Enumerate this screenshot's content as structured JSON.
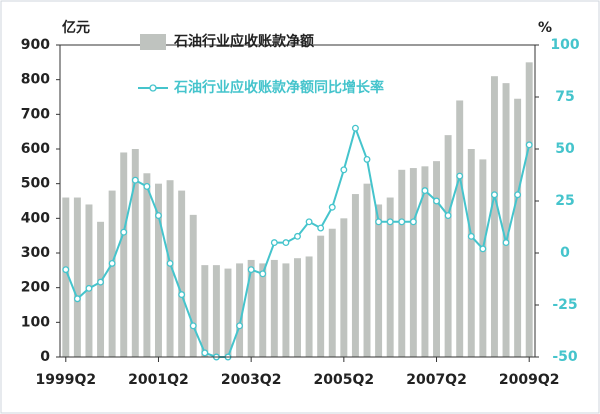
{
  "chart_data": {
    "type": "bar-line",
    "y_label": "亿元",
    "y2_label": "%",
    "categories": [
      "1999Q2",
      null,
      null,
      null,
      null,
      null,
      null,
      null,
      "2001Q2",
      null,
      null,
      null,
      null,
      null,
      null,
      null,
      "2003Q2",
      null,
      null,
      null,
      null,
      null,
      null,
      null,
      "2005Q2",
      null,
      null,
      null,
      null,
      null,
      null,
      null,
      "2007Q2",
      null,
      null,
      null,
      null,
      null,
      null,
      null,
      "2009Q2"
    ],
    "series": [
      {
        "name": "石油行业应收账款净额",
        "type": "bar",
        "color": "#bfc3bf",
        "values": [
          460,
          460,
          440,
          390,
          480,
          590,
          600,
          530,
          500,
          510,
          480,
          410,
          265,
          265,
          255,
          270,
          280,
          270,
          280,
          270,
          285,
          290,
          350,
          370,
          400,
          470,
          500,
          440,
          460,
          540,
          545,
          550,
          565,
          640,
          740,
          600,
          570,
          810,
          790,
          745,
          850
        ]
      },
      {
        "name": "石油行业应收账款净额同比增长率",
        "type": "line",
        "color": "#45c4cc",
        "axis": "y2",
        "values": [
          -8,
          -22,
          -17,
          -14,
          -5,
          10,
          35,
          32,
          18,
          -5,
          -20,
          -35,
          -48,
          -50,
          -50,
          -35,
          -8,
          -10,
          5,
          5,
          8,
          15,
          12,
          22,
          40,
          60,
          45,
          15,
          15,
          15,
          15,
          30,
          25,
          18,
          37,
          8,
          2,
          28,
          5,
          28,
          52
        ]
      }
    ],
    "ylim": [
      0,
      900
    ],
    "yticks": [
      0,
      100,
      200,
      300,
      400,
      500,
      600,
      700,
      800,
      900
    ],
    "y2lim": [
      -50,
      100
    ],
    "y2ticks": [
      -50,
      -25,
      0,
      25,
      50,
      75,
      100
    ]
  }
}
